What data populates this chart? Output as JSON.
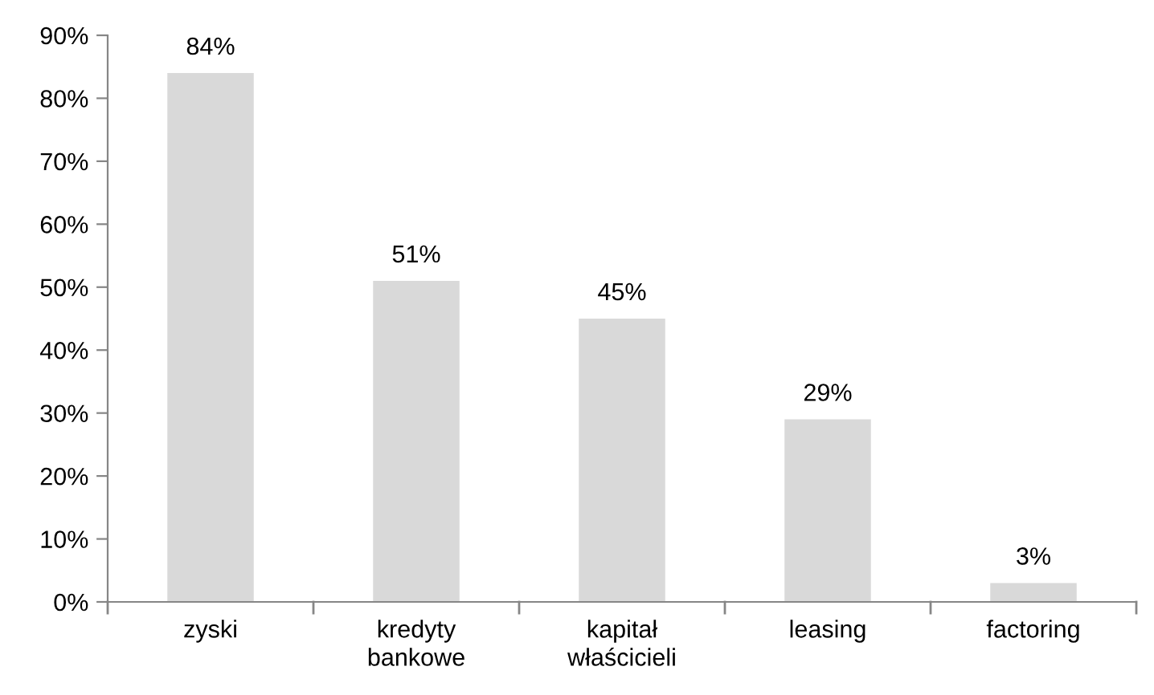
{
  "chart_data": {
    "type": "bar",
    "categories": [
      "zyski",
      "kredyty\nbankowe",
      "kapitał\nwłaścicieli",
      "leasing",
      "factoring"
    ],
    "values": [
      84,
      51,
      45,
      29,
      3
    ],
    "color": "#d9d9d9",
    "value_labels": [
      "84%",
      "51%",
      "45%",
      "29%",
      "3%"
    ],
    "ylim": [
      0,
      90
    ],
    "yticks": [
      {
        "value": 0,
        "label": "0%"
      },
      {
        "value": 10,
        "label": "10%"
      },
      {
        "value": 20,
        "label": "20%"
      },
      {
        "value": 30,
        "label": "30%"
      },
      {
        "value": 40,
        "label": "40%"
      },
      {
        "value": 50,
        "label": "50%"
      },
      {
        "value": 60,
        "label": "60%"
      },
      {
        "value": 70,
        "label": "70%"
      },
      {
        "value": 80,
        "label": "80%"
      },
      {
        "value": 90,
        "label": "90%"
      }
    ],
    "grid": false,
    "legend": false
  }
}
